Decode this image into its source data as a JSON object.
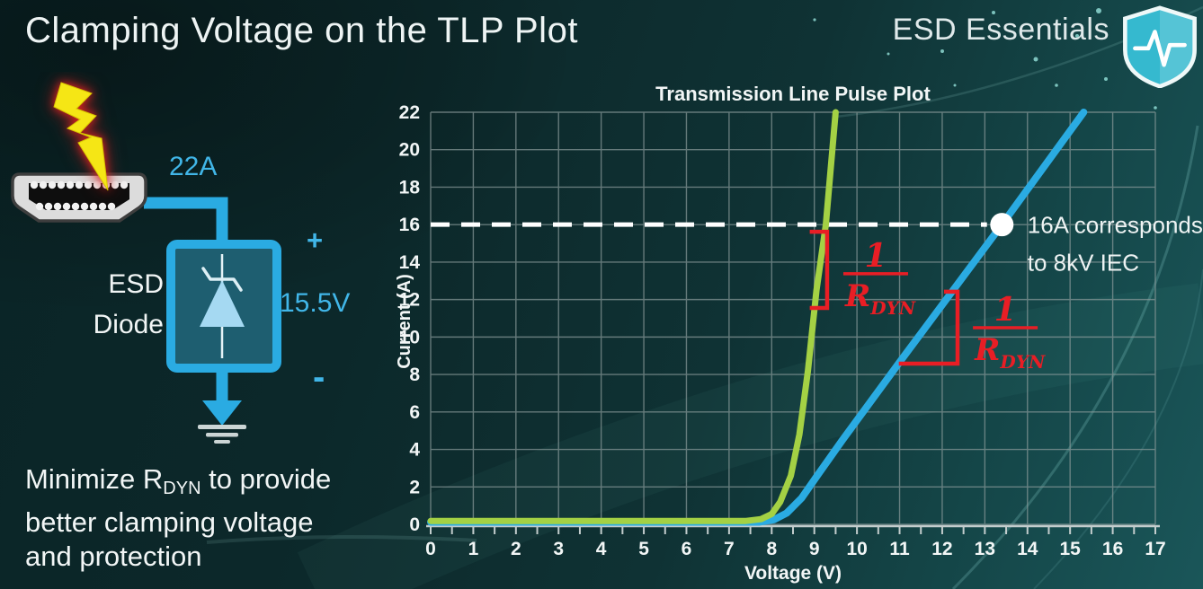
{
  "page": {
    "title": "Clamping Voltage on the TLP Plot"
  },
  "brand": {
    "name": "ESD Essentials",
    "icon": "shield-pulse-icon"
  },
  "diagram": {
    "surge_current_label": "22A",
    "device_label_line1": "ESD",
    "device_label_line2": "Diode",
    "plus_label": "+",
    "clamp_voltage_label": "15.5V",
    "minus_label": "-",
    "colors": {
      "wire": "#2aabe2",
      "label_cyan": "#41b6e8",
      "lightning_yellow": "#f5e615"
    }
  },
  "note": {
    "line1_pre": "Minimize R",
    "line1_sub": "DYN",
    "line1_post": " to provide",
    "line2": "better clamping voltage",
    "line3": "and protection"
  },
  "chart_data": {
    "type": "line",
    "title": "Transmission Line Pulse Plot",
    "xlabel": "Voltage (V)",
    "ylabel": "Current (A)",
    "xlim": [
      0,
      17
    ],
    "ylim": [
      0,
      22
    ],
    "x_tick_step": 1,
    "x_minor_tick_step": 0.5,
    "y_tick_step": 2,
    "grid": true,
    "gridline_color": "#8a9a9a",
    "axis_color": "#c3cdcd",
    "text_color": "#f2f6f6",
    "annotation_color": "#e81e25",
    "series": [
      {
        "name": "high-rdyn-diode",
        "color": "#2aabe2",
        "width": 8,
        "points": [
          [
            0,
            0.12
          ],
          [
            7.7,
            0.12
          ],
          [
            8.05,
            0.25
          ],
          [
            8.35,
            0.6
          ],
          [
            8.7,
            1.4
          ],
          [
            9.1,
            2.7
          ],
          [
            9.66,
            4.5
          ],
          [
            11.03,
            8.75
          ],
          [
            13.4,
            16
          ],
          [
            15.32,
            22
          ]
        ]
      },
      {
        "name": "low-rdyn-diode",
        "color": "#a4d144",
        "width": 7,
        "points": [
          [
            0,
            0.18
          ],
          [
            7.4,
            0.18
          ],
          [
            7.75,
            0.28
          ],
          [
            8.0,
            0.55
          ],
          [
            8.2,
            1.2
          ],
          [
            8.45,
            2.6
          ],
          [
            8.65,
            4.8
          ],
          [
            8.85,
            8.2
          ],
          [
            9.05,
            12.5
          ],
          [
            9.27,
            16
          ],
          [
            9.5,
            22
          ]
        ]
      }
    ],
    "threshold": {
      "y": 16,
      "x_start": 0,
      "x_end": 13.05,
      "color": "#ffffff",
      "style": "dashed"
    },
    "marker": {
      "x": 13.4,
      "y": 16,
      "color": "#ffffff"
    },
    "marker_note": {
      "line1": "16A corresponds",
      "line2": "to 8kV IEC",
      "text_x": 14.0,
      "line1_y": 15.55,
      "line2_y": 13.55
    },
    "slope_fraction": {
      "numerator": "1",
      "denominator_base": "R",
      "denominator_sub": "DYN"
    },
    "slope_annotations": [
      {
        "shape": "bracket",
        "x": 9.3,
        "y_top": 15.62,
        "y_bottom": 11.55,
        "tick_dx": -0.36,
        "label_x": 10.44,
        "label_y": 13.76
      },
      {
        "shape": "right-angle",
        "x_corner": 12.36,
        "x_run_start": 11.03,
        "y_bottom": 8.58,
        "y_top": 12.42,
        "tick_dx": -0.27,
        "label_x": 13.48,
        "label_y": 10.88
      }
    ]
  }
}
